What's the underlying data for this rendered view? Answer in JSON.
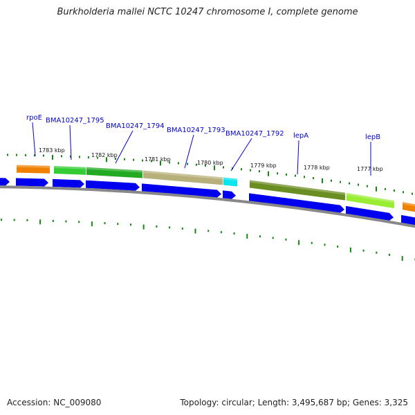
{
  "header": {
    "title": "Burkholderia mallei NCTC 10247 chromosome I, complete genome"
  },
  "footer": {
    "accession": "Accession: NC_009080",
    "topology": "Topology: circular; Length: 3,495,687 bp; Genes: 3,325"
  },
  "colors": {
    "gene_label": "#0000cc",
    "tick": "#118811",
    "backbone": "#888888",
    "cds_blue": "#0000ee",
    "rpoE": "#f08000",
    "bma1795": "#33cc33",
    "bma1794": "#22aa22",
    "bma1793": "#b8b07a",
    "bma1792": "#00e5ee",
    "lepA": "#6b8e23",
    "lepB": "#99ee33",
    "next_gene": "#f08000"
  },
  "map": {
    "kbp_labels": [
      "1783 kbp",
      "1782 kbp",
      "1781 kbp",
      "1780 kbp",
      "1779 kbp",
      "1778 kbp",
      "1777 kbp"
    ],
    "genes": [
      {
        "name": "rpoE",
        "color_key": "rpoE"
      },
      {
        "name": "BMA10247_1795",
        "color_key": "bma1795"
      },
      {
        "name": "BMA10247_1794",
        "color_key": "bma1794"
      },
      {
        "name": "BMA10247_1793",
        "color_key": "bma1793"
      },
      {
        "name": "BMA10247_1792",
        "color_key": "bma1792"
      },
      {
        "name": "lepA",
        "color_key": "lepA"
      },
      {
        "name": "lepB",
        "color_key": "lepB"
      },
      {
        "name": "",
        "color_key": "next_gene"
      }
    ]
  }
}
